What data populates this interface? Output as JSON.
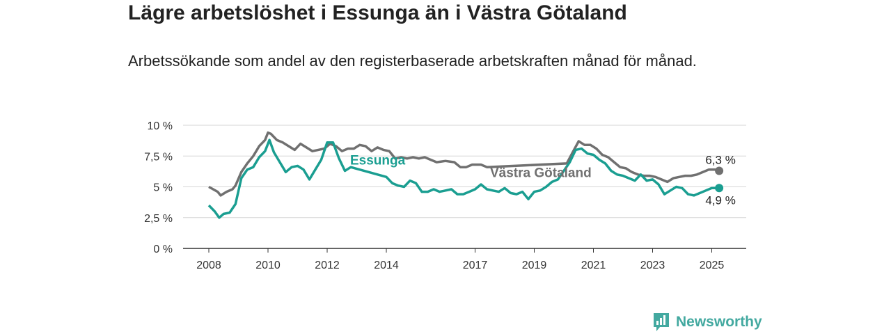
{
  "title": "Lägre arbetslöshet i Essunga än i Västra Götaland",
  "subtitle": "Arbetssökande som andel av den registerbaserade arbetskraften månad för månad.",
  "brand": {
    "name": "Newsworthy",
    "icon": "newsworthy-logo-icon",
    "color": "#43a9a0"
  },
  "chart_data": {
    "type": "line",
    "title": "Lägre arbetslöshet i Essunga än i Västra Götaland",
    "subtitle": "Arbetssökande som andel av den registerbaserade arbetskraften månad för månad.",
    "xlabel": "",
    "ylabel": "",
    "ylim": [
      0,
      10
    ],
    "y_ticks": [
      0,
      2.5,
      5,
      7.5,
      10
    ],
    "y_tick_labels": [
      "0 %",
      "2,5 %",
      "5 %",
      "7,5 %",
      "10 %"
    ],
    "x_ticks": [
      2008,
      2010,
      2012,
      2014,
      2017,
      2019,
      2021,
      2023,
      2025
    ],
    "x_tick_labels": [
      "2008",
      "2010",
      "2012",
      "2014",
      "2017",
      "2019",
      "2021",
      "2023",
      "2025"
    ],
    "grid": true,
    "legend": "inline labels",
    "series": [
      {
        "name": "Västra Götaland",
        "color": "#707070",
        "end_label": "6,3 %",
        "points": [
          [
            2008.0,
            5.0
          ],
          [
            2008.3,
            4.6
          ],
          [
            2008.4,
            4.3
          ],
          [
            2008.6,
            4.6
          ],
          [
            2008.8,
            4.8
          ],
          [
            2008.9,
            5.1
          ],
          [
            2009.1,
            6.2
          ],
          [
            2009.3,
            6.9
          ],
          [
            2009.5,
            7.5
          ],
          [
            2009.7,
            8.3
          ],
          [
            2009.9,
            8.8
          ],
          [
            2010.0,
            9.4
          ],
          [
            2010.1,
            9.3
          ],
          [
            2010.3,
            8.8
          ],
          [
            2010.5,
            8.6
          ],
          [
            2010.7,
            8.3
          ],
          [
            2010.9,
            8.0
          ],
          [
            2011.1,
            8.5
          ],
          [
            2011.3,
            8.2
          ],
          [
            2011.5,
            7.9
          ],
          [
            2011.7,
            8.0
          ],
          [
            2011.9,
            8.1
          ],
          [
            2012.1,
            8.5
          ],
          [
            2012.3,
            8.3
          ],
          [
            2012.5,
            7.9
          ],
          [
            2012.7,
            8.1
          ],
          [
            2012.9,
            8.1
          ],
          [
            2013.1,
            8.4
          ],
          [
            2013.3,
            8.3
          ],
          [
            2013.5,
            7.9
          ],
          [
            2013.7,
            8.2
          ],
          [
            2013.9,
            8.0
          ],
          [
            2014.1,
            7.9
          ],
          [
            2014.3,
            7.3
          ],
          [
            2014.5,
            7.4
          ],
          [
            2014.7,
            7.3
          ],
          [
            2014.9,
            7.4
          ],
          [
            2015.1,
            7.3
          ],
          [
            2015.3,
            7.4
          ],
          [
            2015.5,
            7.2
          ],
          [
            2015.7,
            7.0
          ],
          [
            2016.0,
            7.1
          ],
          [
            2016.3,
            7.0
          ],
          [
            2016.5,
            6.6
          ],
          [
            2016.7,
            6.6
          ],
          [
            2016.9,
            6.8
          ],
          [
            2017.2,
            6.8
          ],
          [
            2017.4,
            6.6
          ],
          [
            2020.1,
            6.9
          ],
          [
            2020.3,
            7.8
          ],
          [
            2020.5,
            8.7
          ],
          [
            2020.7,
            8.4
          ],
          [
            2020.9,
            8.4
          ],
          [
            2021.1,
            8.1
          ],
          [
            2021.3,
            7.6
          ],
          [
            2021.5,
            7.4
          ],
          [
            2021.7,
            7.0
          ],
          [
            2021.9,
            6.6
          ],
          [
            2022.1,
            6.5
          ],
          [
            2022.3,
            6.2
          ],
          [
            2022.5,
            6.0
          ],
          [
            2022.7,
            5.9
          ],
          [
            2022.9,
            5.9
          ],
          [
            2023.1,
            5.8
          ],
          [
            2023.3,
            5.6
          ],
          [
            2023.5,
            5.4
          ],
          [
            2023.7,
            5.7
          ],
          [
            2023.9,
            5.8
          ],
          [
            2024.1,
            5.9
          ],
          [
            2024.3,
            5.9
          ],
          [
            2024.5,
            6.0
          ],
          [
            2024.7,
            6.2
          ],
          [
            2024.9,
            6.4
          ],
          [
            2025.1,
            6.4
          ],
          [
            2025.25,
            6.3
          ]
        ]
      },
      {
        "name": "Essunga",
        "color": "#1a9e91",
        "end_label": "4,9 %",
        "points": [
          [
            2008.0,
            3.5
          ],
          [
            2008.2,
            3.0
          ],
          [
            2008.35,
            2.5
          ],
          [
            2008.5,
            2.8
          ],
          [
            2008.7,
            2.9
          ],
          [
            2008.9,
            3.6
          ],
          [
            2009.1,
            5.7
          ],
          [
            2009.3,
            6.4
          ],
          [
            2009.5,
            6.6
          ],
          [
            2009.7,
            7.4
          ],
          [
            2009.9,
            7.9
          ],
          [
            2010.05,
            8.8
          ],
          [
            2010.2,
            7.8
          ],
          [
            2010.4,
            7.0
          ],
          [
            2010.6,
            6.2
          ],
          [
            2010.8,
            6.6
          ],
          [
            2011.0,
            6.7
          ],
          [
            2011.2,
            6.4
          ],
          [
            2011.4,
            5.6
          ],
          [
            2011.6,
            6.4
          ],
          [
            2011.8,
            7.2
          ],
          [
            2012.0,
            8.6
          ],
          [
            2012.2,
            8.6
          ],
          [
            2012.4,
            7.3
          ],
          [
            2012.6,
            6.3
          ],
          [
            2012.8,
            6.6
          ],
          [
            2014.0,
            5.8
          ],
          [
            2014.2,
            5.3
          ],
          [
            2014.4,
            5.1
          ],
          [
            2014.6,
            5.0
          ],
          [
            2014.8,
            5.5
          ],
          [
            2015.0,
            5.3
          ],
          [
            2015.2,
            4.6
          ],
          [
            2015.4,
            4.6
          ],
          [
            2015.6,
            4.8
          ],
          [
            2015.8,
            4.6
          ],
          [
            2016.0,
            4.7
          ],
          [
            2016.2,
            4.8
          ],
          [
            2016.4,
            4.4
          ],
          [
            2016.6,
            4.4
          ],
          [
            2016.8,
            4.6
          ],
          [
            2017.0,
            4.8
          ],
          [
            2017.2,
            5.2
          ],
          [
            2017.4,
            4.8
          ],
          [
            2017.6,
            4.7
          ],
          [
            2017.8,
            4.6
          ],
          [
            2018.0,
            4.9
          ],
          [
            2018.2,
            4.5
          ],
          [
            2018.4,
            4.4
          ],
          [
            2018.6,
            4.6
          ],
          [
            2018.8,
            4.0
          ],
          [
            2019.0,
            4.6
          ],
          [
            2019.2,
            4.7
          ],
          [
            2019.4,
            5.0
          ],
          [
            2019.6,
            5.4
          ],
          [
            2019.8,
            5.6
          ],
          [
            2020.2,
            7.0
          ],
          [
            2020.4,
            8.0
          ],
          [
            2020.6,
            8.1
          ],
          [
            2020.8,
            7.7
          ],
          [
            2021.0,
            7.6
          ],
          [
            2021.2,
            7.2
          ],
          [
            2021.4,
            6.9
          ],
          [
            2021.6,
            6.3
          ],
          [
            2021.8,
            6.0
          ],
          [
            2022.0,
            5.9
          ],
          [
            2022.2,
            5.7
          ],
          [
            2022.4,
            5.5
          ],
          [
            2022.6,
            6.0
          ],
          [
            2022.8,
            5.5
          ],
          [
            2023.0,
            5.6
          ],
          [
            2023.2,
            5.2
          ],
          [
            2023.4,
            4.4
          ],
          [
            2023.6,
            4.7
          ],
          [
            2023.8,
            5.0
          ],
          [
            2024.0,
            4.9
          ],
          [
            2024.2,
            4.4
          ],
          [
            2024.4,
            4.3
          ],
          [
            2024.6,
            4.5
          ],
          [
            2024.8,
            4.7
          ],
          [
            2025.0,
            4.9
          ],
          [
            2025.25,
            4.9
          ]
        ]
      }
    ]
  }
}
